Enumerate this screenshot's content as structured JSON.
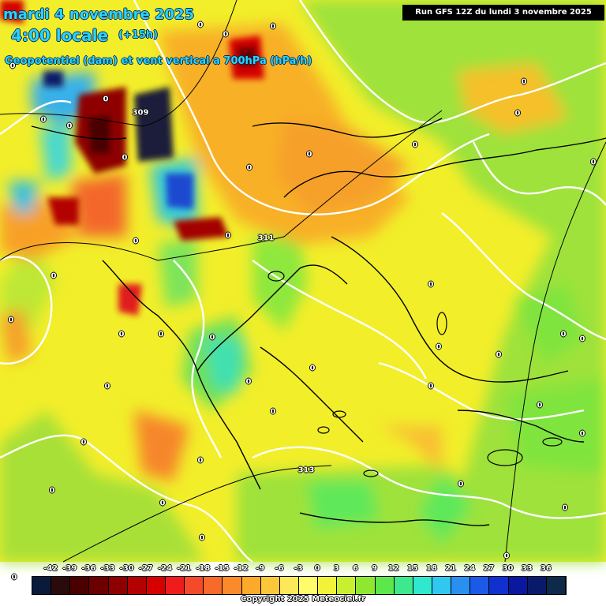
{
  "header": {
    "date": "mardi 4 novembre 2025",
    "time": "4:00 locale",
    "offset": "(+15h)",
    "parameter": "Geopotentiel (dam) et vent vertical a 700hPa (hPa/h)",
    "run": "Run GFS 12Z du lundi 3 novembre 2025"
  },
  "contour_labels": [
    "309",
    "311",
    "313"
  ],
  "legend": {
    "ticks": [
      "-42",
      "-39",
      "-36",
      "-33",
      "-30",
      "-27",
      "-24",
      "-21",
      "-18",
      "-15",
      "-12",
      "-9",
      "-6",
      "-3",
      "0",
      "3",
      "6",
      "9",
      "12",
      "15",
      "18",
      "21",
      "24",
      "27",
      "30",
      "33",
      "36"
    ],
    "colors": [
      "#0a1a3a",
      "#2a0a0a",
      "#4a0000",
      "#6a0000",
      "#8e0000",
      "#b30000",
      "#d60000",
      "#f01c1c",
      "#f54a2a",
      "#f86a2a",
      "#fa8a2a",
      "#fbaa2a",
      "#fcc83a",
      "#fde85a",
      "#fffc6a",
      "#f2f23a",
      "#c8f030",
      "#8ee830",
      "#5ce84a",
      "#3ee88c",
      "#30e8d0",
      "#30c8f0",
      "#2a90f0",
      "#1a5ae6",
      "#1030d0",
      "#0a18a0",
      "#0a1a6a",
      "#0d2a4a"
    ],
    "copyright": "Copyright 2025 Meteociel.fr"
  }
}
